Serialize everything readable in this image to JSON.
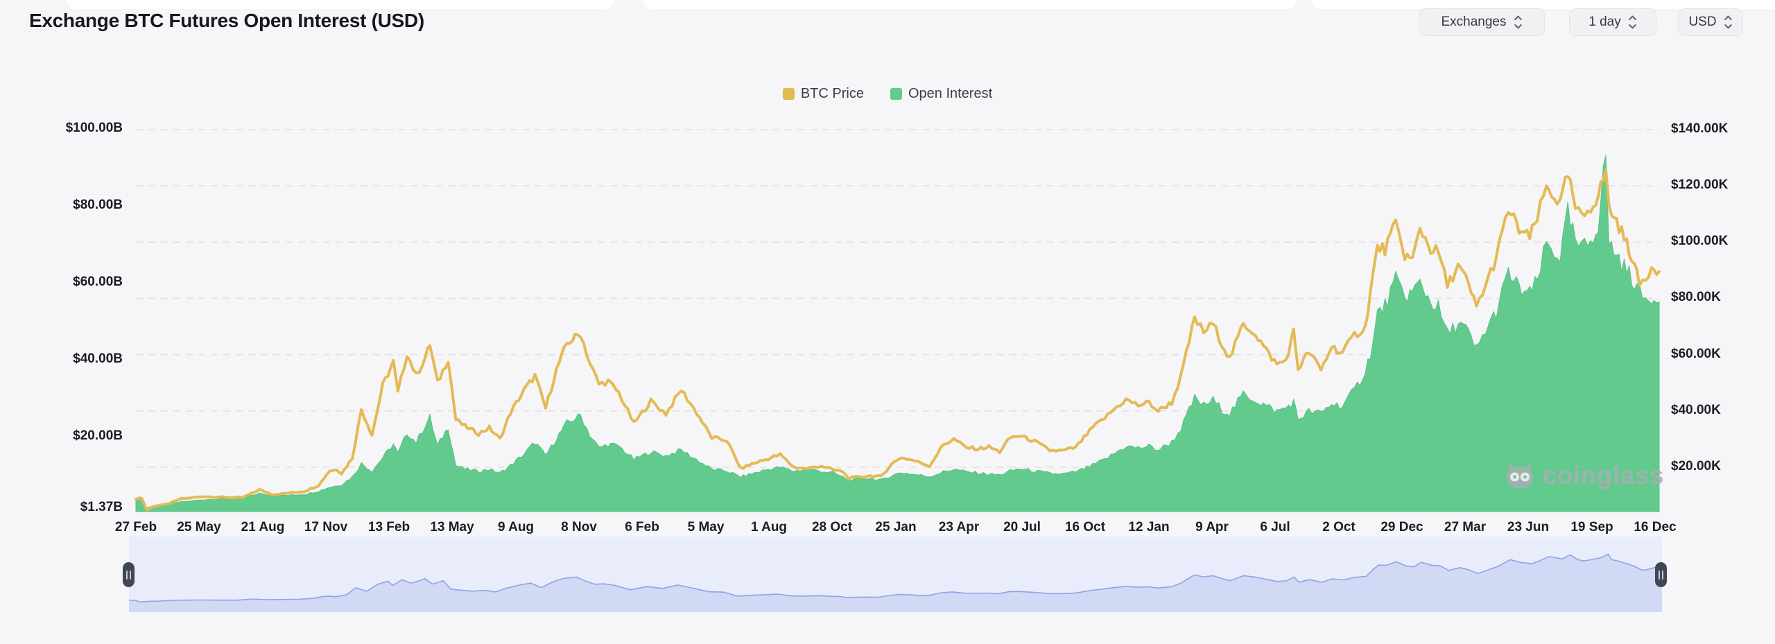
{
  "header": {
    "title": "Exchange BTC Futures Open Interest (USD)"
  },
  "controls": {
    "exchanges": {
      "label": "Exchanges"
    },
    "interval": {
      "label": "1 day"
    },
    "currency": {
      "label": "USD"
    }
  },
  "legend": {
    "items": [
      {
        "label": "BTC Price",
        "color": "#E4BA55"
      },
      {
        "label": "Open Interest",
        "color": "#63CA8D"
      }
    ]
  },
  "watermark": {
    "text": "coinglass"
  },
  "chart_data": {
    "type": "area",
    "title": "Exchange BTC Futures Open Interest (USD)",
    "grid": "horizontal-dashed",
    "legend_position": "top-center",
    "left_axis": {
      "unit": "USD billions (Open Interest)",
      "labels": [
        "$100.00B",
        "$80.00B",
        "$60.00B",
        "$40.00B",
        "$20.00B",
        "$1.37B"
      ],
      "values": [
        100,
        80,
        60,
        40,
        20,
        1.37
      ],
      "min": 1.37,
      "max": 107
    },
    "right_axis": {
      "unit": "USD thousands (BTC Price)",
      "labels": [
        "$140.00K",
        "$120.00K",
        "$100.00K",
        "$80.00K",
        "$60.00K",
        "$40.00K",
        "$20.00K"
      ],
      "values": [
        140,
        120,
        100,
        80,
        60,
        40,
        20
      ],
      "min": 4,
      "max": 149
    },
    "x_tick_labels": [
      "27 Feb",
      "25 May",
      "21 Aug",
      "17 Nov",
      "13 Feb",
      "13 May",
      "9 Aug",
      "8 Nov",
      "6 Feb",
      "5 May",
      "1 Aug",
      "28 Oct",
      "25 Jan",
      "23 Apr",
      "20 Jul",
      "16 Oct",
      "12 Jan",
      "9 Apr",
      "6 Jul",
      "2 Oct",
      "29 Dec",
      "27 Mar",
      "23 Jun",
      "19 Sep",
      "16 Dec"
    ],
    "series": [
      {
        "name": "BTC Price",
        "axis": "right",
        "style": "line",
        "color": "#E4BA55",
        "points": [
          [
            0.0,
            8.8
          ],
          [
            0.004,
            9.0
          ],
          [
            0.007,
            4.9
          ],
          [
            0.012,
            6.2
          ],
          [
            0.02,
            6.8
          ],
          [
            0.03,
            8.8
          ],
          [
            0.045,
            9.6
          ],
          [
            0.058,
            9.3
          ],
          [
            0.07,
            9.2
          ],
          [
            0.081,
            12.0
          ],
          [
            0.09,
            10.3
          ],
          [
            0.1,
            10.8
          ],
          [
            0.111,
            11.5
          ],
          [
            0.12,
            13.6
          ],
          [
            0.127,
            18.7
          ],
          [
            0.132,
            19.2
          ],
          [
            0.135,
            17.8
          ],
          [
            0.142,
            23.2
          ],
          [
            0.148,
            40.6
          ],
          [
            0.152,
            35.5
          ],
          [
            0.155,
            31.5
          ],
          [
            0.162,
            49.0
          ],
          [
            0.169,
            57.4
          ],
          [
            0.172,
            46.5
          ],
          [
            0.178,
            60.5
          ],
          [
            0.184,
            52.5
          ],
          [
            0.19,
            59.0
          ],
          [
            0.193,
            63.6
          ],
          [
            0.198,
            50.0
          ],
          [
            0.205,
            58.5
          ],
          [
            0.21,
            37.0
          ],
          [
            0.216,
            34.5
          ],
          [
            0.225,
            32.0
          ],
          [
            0.232,
            34.0
          ],
          [
            0.239,
            30.0
          ],
          [
            0.246,
            39.5
          ],
          [
            0.255,
            47.5
          ],
          [
            0.262,
            52.5
          ],
          [
            0.269,
            41.0
          ],
          [
            0.276,
            54.5
          ],
          [
            0.283,
            64.0
          ],
          [
            0.292,
            67.5
          ],
          [
            0.298,
            57.0
          ],
          [
            0.304,
            49.5
          ],
          [
            0.31,
            50.5
          ],
          [
            0.317,
            46.5
          ],
          [
            0.327,
            35.5
          ],
          [
            0.338,
            43.5
          ],
          [
            0.348,
            39.0
          ],
          [
            0.358,
            47.5
          ],
          [
            0.368,
            39.5
          ],
          [
            0.378,
            30.5
          ],
          [
            0.388,
            29.5
          ],
          [
            0.397,
            19.5
          ],
          [
            0.406,
            21.5
          ],
          [
            0.415,
            23.0
          ],
          [
            0.423,
            24.5
          ],
          [
            0.432,
            20.0
          ],
          [
            0.44,
            19.5
          ],
          [
            0.45,
            20.5
          ],
          [
            0.458,
            19.0
          ],
          [
            0.464,
            18.5
          ],
          [
            0.468,
            16.0
          ],
          [
            0.474,
            16.5
          ],
          [
            0.482,
            17.0
          ],
          [
            0.489,
            16.6
          ],
          [
            0.496,
            21.0
          ],
          [
            0.502,
            23.5
          ],
          [
            0.51,
            22.5
          ],
          [
            0.521,
            20.5
          ],
          [
            0.53,
            28.0
          ],
          [
            0.537,
            30.0
          ],
          [
            0.545,
            27.0
          ],
          [
            0.553,
            26.5
          ],
          [
            0.56,
            27.2
          ],
          [
            0.567,
            25.5
          ],
          [
            0.574,
            30.5
          ],
          [
            0.58,
            31.2
          ],
          [
            0.59,
            29.2
          ],
          [
            0.6,
            26.0
          ],
          [
            0.608,
            25.8
          ],
          [
            0.617,
            27.0
          ],
          [
            0.628,
            34.0
          ],
          [
            0.636,
            37.5
          ],
          [
            0.644,
            41.5
          ],
          [
            0.65,
            44.0
          ],
          [
            0.658,
            42.0
          ],
          [
            0.665,
            43.0
          ],
          [
            0.671,
            40.0
          ],
          [
            0.68,
            43.0
          ],
          [
            0.686,
            52.0
          ],
          [
            0.695,
            73.0
          ],
          [
            0.701,
            68.0
          ],
          [
            0.707,
            71.0
          ],
          [
            0.713,
            64.0
          ],
          [
            0.718,
            58.5
          ],
          [
            0.727,
            71.0
          ],
          [
            0.735,
            67.5
          ],
          [
            0.742,
            61.5
          ],
          [
            0.749,
            56.5
          ],
          [
            0.755,
            58.0
          ],
          [
            0.76,
            68.0
          ],
          [
            0.763,
            55.0
          ],
          [
            0.77,
            61.0
          ],
          [
            0.778,
            54.5
          ],
          [
            0.785,
            63.0
          ],
          [
            0.792,
            60.5
          ],
          [
            0.8,
            67.0
          ],
          [
            0.807,
            69.5
          ],
          [
            0.812,
            88.0
          ],
          [
            0.815,
            98.0
          ],
          [
            0.82,
            97.5
          ],
          [
            0.827,
            106.3
          ],
          [
            0.833,
            95.5
          ],
          [
            0.838,
            93.5
          ],
          [
            0.843,
            105.0
          ],
          [
            0.85,
            97.5
          ],
          [
            0.855,
            96.5
          ],
          [
            0.861,
            84.5
          ],
          [
            0.868,
            91.5
          ],
          [
            0.873,
            87.0
          ],
          [
            0.88,
            77.0
          ],
          [
            0.886,
            84.5
          ],
          [
            0.893,
            94.5
          ],
          [
            0.901,
            111.5
          ],
          [
            0.908,
            104.5
          ],
          [
            0.915,
            101.5
          ],
          [
            0.92,
            108.5
          ],
          [
            0.926,
            119.5
          ],
          [
            0.931,
            116.5
          ],
          [
            0.935,
            113.5
          ],
          [
            0.94,
            124.0
          ],
          [
            0.945,
            112.0
          ],
          [
            0.949,
            108.5
          ],
          [
            0.955,
            112.5
          ],
          [
            0.96,
            116.5
          ],
          [
            0.965,
            125.5
          ],
          [
            0.967,
            112.0
          ],
          [
            0.972,
            107.5
          ],
          [
            0.977,
            101.5
          ],
          [
            0.982,
            95.0
          ],
          [
            0.987,
            85.0
          ],
          [
            0.991,
            87.0
          ],
          [
            0.995,
            91.5
          ],
          [
            1.0,
            89.5
          ]
        ]
      },
      {
        "name": "Open Interest",
        "axis": "left",
        "style": "area",
        "color": "#63CA8D",
        "points": [
          [
            0.0,
            4.0
          ],
          [
            0.004,
            4.3
          ],
          [
            0.007,
            1.5
          ],
          [
            0.012,
            2.0
          ],
          [
            0.02,
            2.4
          ],
          [
            0.03,
            3.0
          ],
          [
            0.045,
            3.6
          ],
          [
            0.058,
            3.8
          ],
          [
            0.07,
            4.0
          ],
          [
            0.081,
            5.2
          ],
          [
            0.09,
            4.6
          ],
          [
            0.1,
            4.7
          ],
          [
            0.111,
            5.0
          ],
          [
            0.12,
            5.8
          ],
          [
            0.127,
            6.8
          ],
          [
            0.135,
            7.5
          ],
          [
            0.142,
            9.5
          ],
          [
            0.148,
            13.0
          ],
          [
            0.155,
            11.0
          ],
          [
            0.162,
            14.5
          ],
          [
            0.169,
            18.0
          ],
          [
            0.172,
            15.5
          ],
          [
            0.178,
            21.0
          ],
          [
            0.184,
            18.5
          ],
          [
            0.19,
            23.0
          ],
          [
            0.193,
            25.0
          ],
          [
            0.198,
            17.5
          ],
          [
            0.205,
            22.5
          ],
          [
            0.21,
            12.5
          ],
          [
            0.216,
            11.5
          ],
          [
            0.225,
            11.0
          ],
          [
            0.232,
            11.5
          ],
          [
            0.239,
            10.5
          ],
          [
            0.246,
            12.5
          ],
          [
            0.255,
            15.5
          ],
          [
            0.262,
            18.5
          ],
          [
            0.269,
            15.0
          ],
          [
            0.276,
            19.5
          ],
          [
            0.283,
            23.5
          ],
          [
            0.292,
            25.5
          ],
          [
            0.298,
            20.5
          ],
          [
            0.304,
            17.0
          ],
          [
            0.31,
            18.0
          ],
          [
            0.317,
            17.5
          ],
          [
            0.327,
            14.0
          ],
          [
            0.338,
            16.0
          ],
          [
            0.348,
            15.0
          ],
          [
            0.358,
            16.5
          ],
          [
            0.368,
            14.0
          ],
          [
            0.378,
            11.5
          ],
          [
            0.388,
            11.0
          ],
          [
            0.397,
            9.5
          ],
          [
            0.406,
            10.5
          ],
          [
            0.415,
            11.5
          ],
          [
            0.423,
            12.0
          ],
          [
            0.432,
            11.0
          ],
          [
            0.44,
            11.5
          ],
          [
            0.45,
            11.0
          ],
          [
            0.458,
            10.5
          ],
          [
            0.464,
            9.5
          ],
          [
            0.468,
            8.8
          ],
          [
            0.474,
            9.0
          ],
          [
            0.482,
            9.2
          ],
          [
            0.489,
            8.6
          ],
          [
            0.496,
            9.8
          ],
          [
            0.502,
            10.6
          ],
          [
            0.51,
            10.2
          ],
          [
            0.521,
            9.6
          ],
          [
            0.53,
            10.8
          ],
          [
            0.537,
            11.5
          ],
          [
            0.545,
            10.8
          ],
          [
            0.553,
            10.5
          ],
          [
            0.56,
            10.2
          ],
          [
            0.567,
            10.0
          ],
          [
            0.574,
            11.0
          ],
          [
            0.58,
            11.6
          ],
          [
            0.59,
            11.0
          ],
          [
            0.6,
            10.4
          ],
          [
            0.608,
            10.2
          ],
          [
            0.617,
            10.8
          ],
          [
            0.628,
            12.5
          ],
          [
            0.636,
            14.0
          ],
          [
            0.644,
            16.0
          ],
          [
            0.65,
            17.5
          ],
          [
            0.658,
            17.0
          ],
          [
            0.665,
            17.5
          ],
          [
            0.671,
            16.5
          ],
          [
            0.68,
            18.5
          ],
          [
            0.686,
            22.0
          ],
          [
            0.695,
            30.0
          ],
          [
            0.701,
            28.0
          ],
          [
            0.707,
            29.5
          ],
          [
            0.713,
            27.0
          ],
          [
            0.718,
            26.0
          ],
          [
            0.727,
            31.0
          ],
          [
            0.735,
            29.5
          ],
          [
            0.742,
            28.0
          ],
          [
            0.749,
            26.5
          ],
          [
            0.755,
            27.5
          ],
          [
            0.76,
            29.0
          ],
          [
            0.763,
            24.5
          ],
          [
            0.77,
            26.5
          ],
          [
            0.778,
            26.0
          ],
          [
            0.785,
            28.5
          ],
          [
            0.792,
            28.0
          ],
          [
            0.8,
            32.0
          ],
          [
            0.807,
            37.0
          ],
          [
            0.812,
            44.0
          ],
          [
            0.815,
            52.0
          ],
          [
            0.82,
            54.0
          ],
          [
            0.827,
            60.5
          ],
          [
            0.833,
            56.5
          ],
          [
            0.838,
            57.5
          ],
          [
            0.843,
            60.0
          ],
          [
            0.85,
            55.0
          ],
          [
            0.855,
            53.5
          ],
          [
            0.861,
            46.5
          ],
          [
            0.868,
            49.5
          ],
          [
            0.873,
            48.0
          ],
          [
            0.88,
            42.5
          ],
          [
            0.886,
            47.5
          ],
          [
            0.893,
            52.5
          ],
          [
            0.901,
            62.5
          ],
          [
            0.908,
            58.5
          ],
          [
            0.915,
            57.0
          ],
          [
            0.92,
            60.5
          ],
          [
            0.926,
            70.0
          ],
          [
            0.931,
            68.0
          ],
          [
            0.935,
            67.0
          ],
          [
            0.94,
            78.0
          ],
          [
            0.945,
            70.5
          ],
          [
            0.949,
            68.5
          ],
          [
            0.955,
            71.0
          ],
          [
            0.96,
            75.5
          ],
          [
            0.965,
            94.0
          ],
          [
            0.967,
            70.0
          ],
          [
            0.972,
            67.5
          ],
          [
            0.977,
            64.0
          ],
          [
            0.982,
            61.5
          ],
          [
            0.987,
            57.5
          ],
          [
            0.991,
            55.5
          ],
          [
            0.995,
            56.5
          ],
          [
            1.0,
            55.0
          ]
        ]
      }
    ]
  },
  "navigator": {
    "handles": 2
  }
}
